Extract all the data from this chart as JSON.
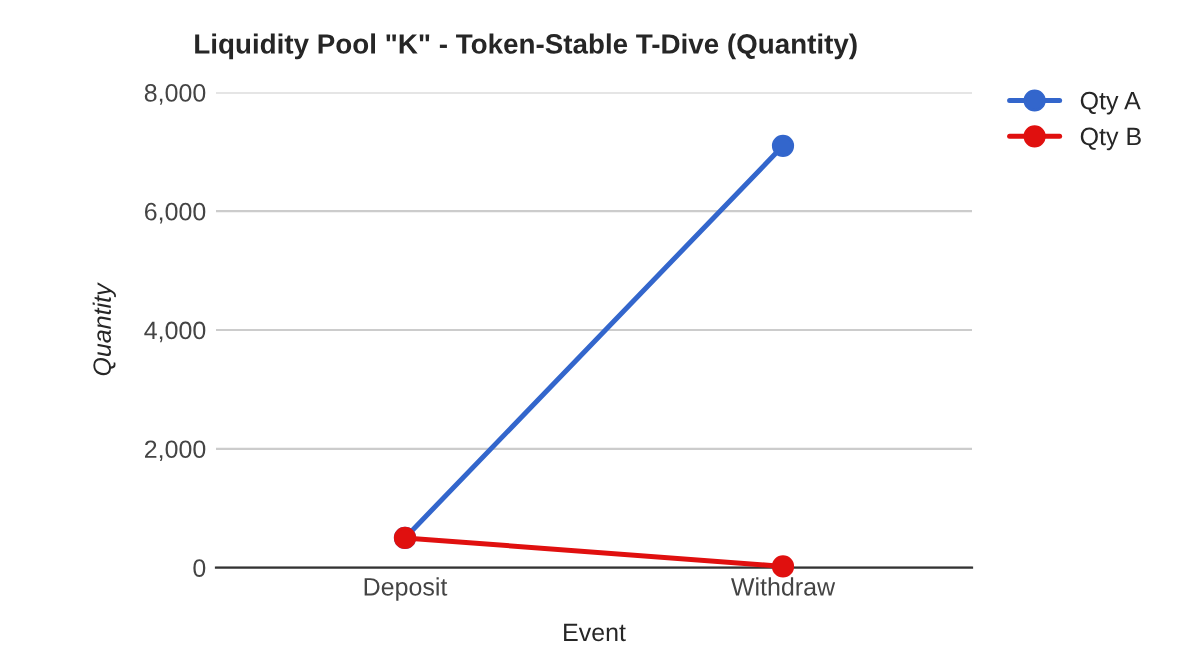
{
  "chart_data": {
    "type": "line",
    "title": "Liquidity Pool \"K\" - Token-Stable T-Dive (Quantity)",
    "xlabel": "Event",
    "ylabel": "Quantity",
    "categories": [
      "Deposit",
      "Withdraw"
    ],
    "series": [
      {
        "name": "Qty A",
        "color": "#3366cc",
        "values": [
          500,
          7100
        ]
      },
      {
        "name": "Qty B",
        "color": "#e0100f",
        "values": [
          500,
          20
        ]
      }
    ],
    "ylim": [
      0,
      8000
    ],
    "yticks": [
      {
        "value": 0,
        "label": "0"
      },
      {
        "value": 2000,
        "label": "2,000"
      },
      {
        "value": 4000,
        "label": "4,000"
      },
      {
        "value": 6000,
        "label": "6,000"
      },
      {
        "value": 8000,
        "label": "8,000"
      }
    ],
    "grid": "y",
    "legend": "top right",
    "marker": "circle",
    "line_style": "solid"
  }
}
